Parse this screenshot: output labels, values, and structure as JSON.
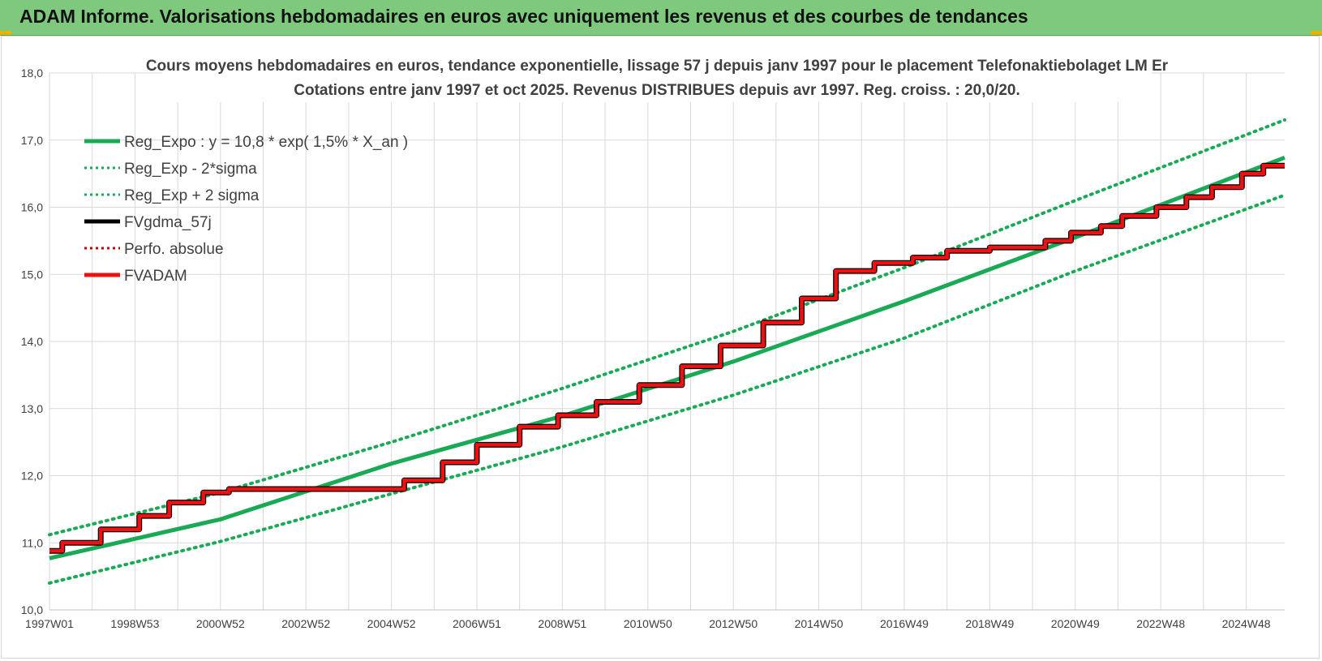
{
  "banner": {
    "title": "ADAM Informe. Valorisations hebdomadaires en euros avec uniquement les revenus et des courbes de tendances",
    "color": "#7fc97f"
  },
  "chart_data": {
    "type": "line",
    "title_lines": [
      "Cours moyens hebdomadaires en euros, tendance exponentielle, lissage 57 j depuis janv 1997 pour le placement Telefonaktiebolaget LM Er",
      "Cotations entre janv 1997 et oct 2025. Revenus DISTRIBUES depuis avr 1997. Reg. croiss. : 20,0/20."
    ],
    "xlim": [
      1997.0,
      2025.9
    ],
    "ylim": [
      10.0,
      18.0
    ],
    "y_ticks": [
      "10,0",
      "11,0",
      "12,0",
      "13,0",
      "14,0",
      "15,0",
      "16,0",
      "17,0",
      "18,0"
    ],
    "y_tick_values": [
      10,
      11,
      12,
      13,
      14,
      15,
      16,
      17,
      18
    ],
    "x_ticks": [
      "1997W01",
      "1998W53",
      "2000W52",
      "2002W52",
      "2004W52",
      "2006W51",
      "2008W51",
      "2010W50",
      "2012W50",
      "2014W50",
      "2016W49",
      "2018W49",
      "2020W49",
      "2022W48",
      "2024W48"
    ],
    "x_tick_values": [
      1997.0,
      1999.0,
      2001.0,
      2003.0,
      2005.0,
      2007.0,
      2009.0,
      2011.0,
      2013.0,
      2015.0,
      2017.0,
      2019.0,
      2021.0,
      2023.0,
      2025.0
    ],
    "grid": true,
    "legend": "top-left",
    "legend_entries": [
      {
        "label": "Reg_Expo : y = 10,8 * exp( 1,5% *  X_an )",
        "color": "#1aaa55",
        "style": "solid"
      },
      {
        "label": "Reg_Exp - 2*sigma",
        "color": "#1aaa55",
        "style": "dotted"
      },
      {
        "label": "Reg_Exp + 2 sigma",
        "color": "#1aaa55",
        "style": "dotted"
      },
      {
        "label": "FVgdma_57j",
        "color": "#000000",
        "style": "solid"
      },
      {
        "label": "Perfo. absolue",
        "color": "#cc0000",
        "style": "dotted"
      },
      {
        "label": "FVADAM",
        "color": "#ee1111",
        "style": "solid"
      }
    ],
    "series": [
      {
        "name": "Reg_Expo : y = 10,8 * exp( 1,5% *  X_an )",
        "x": [
          1997.0,
          2001.0,
          2005.0,
          2009.0,
          2013.0,
          2017.0,
          2021.0,
          2025.9
        ],
        "y": [
          10.77,
          11.35,
          12.18,
          12.89,
          13.7,
          14.6,
          15.55,
          16.74
        ]
      },
      {
        "name": "Reg_Exp - 2*sigma",
        "x": [
          1997.0,
          2001.0,
          2005.0,
          2009.0,
          2013.0,
          2017.0,
          2021.0,
          2025.9
        ],
        "y": [
          10.4,
          11.02,
          11.73,
          12.43,
          13.2,
          14.05,
          15.05,
          16.18
        ]
      },
      {
        "name": "Reg_Exp + 2 sigma",
        "x": [
          1997.0,
          2001.0,
          2005.0,
          2009.0,
          2013.0,
          2017.0,
          2021.0,
          2025.9
        ],
        "y": [
          11.12,
          11.75,
          12.5,
          13.3,
          14.15,
          15.1,
          16.1,
          17.3
        ]
      },
      {
        "name": "FVADAM",
        "x": [
          1997.0,
          1997.3,
          1997.3,
          1998.2,
          1998.2,
          1999.1,
          1999.1,
          1999.8,
          1999.8,
          2000.6,
          2000.6,
          2001.2,
          2001.2,
          2005.3,
          2005.3,
          2006.2,
          2006.2,
          2007.0,
          2007.0,
          2008.0,
          2008.0,
          2008.9,
          2008.9,
          2009.8,
          2009.8,
          2010.8,
          2010.8,
          2011.8,
          2011.8,
          2012.7,
          2012.7,
          2013.7,
          2013.7,
          2014.6,
          2014.6,
          2015.4,
          2015.4,
          2016.3,
          2016.3,
          2017.2,
          2017.2,
          2018.0,
          2018.0,
          2019.0,
          2019.0,
          2020.3,
          2020.3,
          2020.9,
          2020.9,
          2021.6,
          2021.6,
          2022.1,
          2022.1,
          2022.9,
          2022.9,
          2023.6,
          2023.6,
          2024.2,
          2024.2,
          2024.9,
          2024.9,
          2025.4,
          2025.4,
          2025.9
        ],
        "y": [
          10.88,
          10.88,
          11.0,
          11.0,
          11.2,
          11.2,
          11.4,
          11.4,
          11.6,
          11.6,
          11.75,
          11.75,
          11.8,
          11.8,
          11.93,
          11.93,
          12.2,
          12.2,
          12.46,
          12.46,
          12.73,
          12.73,
          12.9,
          12.9,
          13.1,
          13.1,
          13.35,
          13.35,
          13.63,
          13.63,
          13.94,
          13.94,
          14.28,
          14.28,
          14.64,
          14.64,
          15.05,
          15.05,
          15.17,
          15.17,
          15.25,
          15.25,
          15.35,
          15.35,
          15.4,
          15.4,
          15.5,
          15.5,
          15.62,
          15.62,
          15.72,
          15.72,
          15.87,
          15.87,
          16.0,
          16.0,
          16.15,
          16.15,
          16.3,
          16.3,
          16.5,
          16.5,
          16.62,
          16.62
        ]
      }
    ]
  }
}
